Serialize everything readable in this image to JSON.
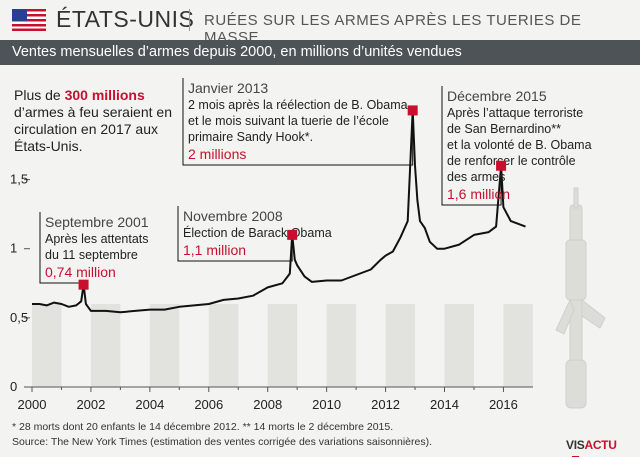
{
  "header": {
    "country": "ÉTATS-UNIS",
    "headline": "RUÉES SUR LES ARMES APRÈS LES TUERIES DE MASSE",
    "flag_icon": "us-flag-icon"
  },
  "subtitle": "Ventes mensuelles d’armes depuis 2000, en millions d’unités vendues",
  "intro": {
    "before": "Plus de ",
    "highlight": "300 millions",
    "after": " d’armes à feu seraient en circulation en 2017 aux États-Unis."
  },
  "footnote": "* 28 morts dont 20 enfants le 14 décembre 2012. ** 14 morts le 2 décembre 2015.",
  "source": "Source: The New York Times (estimation des ventes corrigée des variations saisonnières).",
  "logo": {
    "part1": "VIS",
    "part2": "ACTU"
  },
  "colors": {
    "accent": "#c8102e",
    "line": "#111111",
    "stripe": "#e2e2df",
    "background": "#f3f3f1",
    "subbar": "#4d5357"
  },
  "chart_data": {
    "type": "line",
    "title": "Ventes mensuelles d’armes depuis 2000, en millions d’unités vendues",
    "xlabel": "",
    "ylabel": "",
    "xlim": [
      2000,
      2016.8
    ],
    "ylim": [
      0,
      1.75
    ],
    "x_ticks": [
      2000,
      2002,
      2004,
      2006,
      2008,
      2010,
      2012,
      2014,
      2016
    ],
    "y_ticks": [
      {
        "value": 0,
        "label": "0"
      },
      {
        "value": 0.5,
        "label": "0,5"
      },
      {
        "value": 1,
        "label": "1"
      },
      {
        "value": 1.5,
        "label": "1,5"
      }
    ],
    "grid": false,
    "x": [
      2000.0,
      2000.25,
      2000.5,
      2000.75,
      2001.0,
      2001.25,
      2001.5,
      2001.67,
      2001.75,
      2001.83,
      2002.0,
      2002.5,
      2003.0,
      2003.5,
      2004.0,
      2004.5,
      2005.0,
      2005.5,
      2006.0,
      2006.5,
      2007.0,
      2007.5,
      2008.0,
      2008.5,
      2008.75,
      2008.83,
      2008.92,
      2009.0,
      2009.25,
      2009.5,
      2010.0,
      2010.5,
      2011.0,
      2011.5,
      2011.83,
      2012.0,
      2012.25,
      2012.5,
      2012.75,
      2012.92,
      2013.0,
      2013.08,
      2013.17,
      2013.33,
      2013.5,
      2013.75,
      2014.0,
      2014.5,
      2015.0,
      2015.5,
      2015.75,
      2015.92,
      2016.0,
      2016.25,
      2016.5,
      2016.75
    ],
    "values": [
      0.6,
      0.6,
      0.59,
      0.61,
      0.6,
      0.58,
      0.59,
      0.62,
      0.74,
      0.6,
      0.55,
      0.55,
      0.54,
      0.55,
      0.56,
      0.56,
      0.58,
      0.59,
      0.6,
      0.63,
      0.64,
      0.66,
      0.72,
      0.75,
      0.82,
      1.1,
      0.92,
      0.88,
      0.8,
      0.76,
      0.77,
      0.77,
      0.81,
      0.85,
      0.92,
      0.95,
      0.98,
      1.08,
      1.2,
      2.0,
      1.6,
      1.35,
      1.2,
      1.15,
      1.05,
      1.0,
      1.0,
      1.03,
      1.1,
      1.12,
      1.16,
      1.6,
      1.3,
      1.2,
      1.18,
      1.16
    ],
    "events": [
      {
        "x": 2001.75,
        "y": 0.74,
        "date": "Septembre 2001",
        "desc": [
          "Après les attentats",
          "du 11 septembre"
        ],
        "value": "0,74 million"
      },
      {
        "x": 2008.83,
        "y": 1.1,
        "date": "Novembre 2008",
        "desc": [
          "Élection de Barack Obama"
        ],
        "value": "1,1 million"
      },
      {
        "x": 2012.92,
        "y": 2.0,
        "date": "Janvier 2013",
        "desc": [
          "2 mois après la réélection de B. Obama",
          "et le mois suivant la tuerie de l’école",
          "primaire Sandy Hook*."
        ],
        "value": "2 millions"
      },
      {
        "x": 2015.92,
        "y": 1.6,
        "date": "Décembre 2015",
        "desc": [
          "Après l’attaque terroriste",
          "de San Bernardino**",
          "et la volonté de B. Obama",
          "de renforcer le contrôle",
          "des armes"
        ],
        "value": "1,6 million"
      }
    ]
  }
}
